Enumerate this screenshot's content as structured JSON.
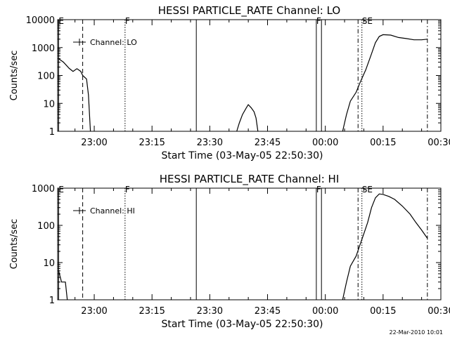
{
  "footer": {
    "timestamp": "22-Mar-2010 10:01"
  },
  "colors": {
    "line": "#000000",
    "background": "#ffffff"
  },
  "chart_data": [
    {
      "type": "line",
      "title": "HESSI PARTICLE_RATE Channel: LO",
      "xlabel": "Start Time (03-May-05 22:50:30)",
      "ylabel": "Counts/sec",
      "y_scale": "log",
      "ylim": [
        1,
        10000
      ],
      "xlim": [
        "22:50:30",
        "00:30:00"
      ],
      "grid": false,
      "legend": {
        "placement": "top-left",
        "entries": [
          "Channel: LO"
        ]
      },
      "x_ticks": [
        "23:00",
        "23:15",
        "23:30",
        "23:45",
        "00:00",
        "00:15",
        "00:30"
      ],
      "y_ticks": [
        "1",
        "10",
        "100",
        "1000",
        "10000"
      ],
      "markers": [
        {
          "label": "E",
          "time": "22:50:45",
          "style": "solid"
        },
        {
          "label": "",
          "time": "22:57:00",
          "style": "dashed"
        },
        {
          "label": "F",
          "time": "23:08:00",
          "style": "dotted"
        },
        {
          "label": "",
          "time": "23:26:30",
          "style": "solid"
        },
        {
          "label": "F",
          "time": "23:57:40",
          "style": "solid"
        },
        {
          "label": "",
          "time": "23:59:00",
          "style": "solid"
        },
        {
          "label": "",
          "time": "00:08:30",
          "style": "dashdot"
        },
        {
          "label": "SE",
          "time": "00:09:30",
          "style": "dotted"
        },
        {
          "label": "",
          "time": "00:26:30",
          "style": "dashdot"
        }
      ],
      "series": [
        {
          "name": "Channel: LO",
          "segments": [
            [
              [
                "22:50:45",
                400
              ],
              [
                "22:52:00",
                300
              ],
              [
                "22:53:30",
                180
              ],
              [
                "22:54:30",
                140
              ],
              [
                "22:55:30",
                175
              ],
              [
                "22:56:30",
                140
              ],
              [
                "22:57:00",
                100
              ],
              [
                "22:58:00",
                75
              ],
              [
                "22:58:30",
                20
              ],
              [
                "22:59:00",
                1
              ]
            ],
            [
              [
                "23:37:00",
                1
              ],
              [
                "23:37:40",
                2
              ],
              [
                "23:38:30",
                4
              ],
              [
                "23:39:30",
                7
              ],
              [
                "23:40:00",
                9
              ],
              [
                "23:40:45",
                7
              ],
              [
                "23:41:30",
                5
              ],
              [
                "23:42:00",
                3
              ],
              [
                "23:42:30",
                1
              ]
            ],
            [
              [
                "00:04:30",
                1
              ],
              [
                "00:05:30",
                4
              ],
              [
                "00:06:30",
                12
              ],
              [
                "00:08:00",
                25
              ],
              [
                "00:09:00",
                55
              ],
              [
                "00:10:30",
                160
              ],
              [
                "00:12:00",
                600
              ],
              [
                "00:13:00",
                1500
              ],
              [
                "00:14:00",
                2500
              ],
              [
                "00:15:00",
                2900
              ],
              [
                "00:17:00",
                2800
              ],
              [
                "00:19:00",
                2300
              ],
              [
                "00:21:00",
                2100
              ],
              [
                "00:23:00",
                1900
              ],
              [
                "00:25:00",
                1900
              ],
              [
                "00:26:30",
                2000
              ]
            ]
          ]
        }
      ]
    },
    {
      "type": "line",
      "title": "HESSI PARTICLE_RATE Channel: HI",
      "xlabel": "Start Time (03-May-05 22:50:30)",
      "ylabel": "Counts/sec",
      "y_scale": "log",
      "ylim": [
        1,
        1000
      ],
      "xlim": [
        "22:50:30",
        "00:30:00"
      ],
      "grid": false,
      "legend": {
        "placement": "top-left",
        "entries": [
          "Channel: HI"
        ]
      },
      "x_ticks": [
        "23:00",
        "23:15",
        "23:30",
        "23:45",
        "00:00",
        "00:15",
        "00:30"
      ],
      "y_ticks": [
        "1",
        "10",
        "100",
        "1000"
      ],
      "markers": [
        {
          "label": "E",
          "time": "22:50:45",
          "style": "solid"
        },
        {
          "label": "",
          "time": "22:57:00",
          "style": "dashed"
        },
        {
          "label": "F",
          "time": "23:08:00",
          "style": "dotted"
        },
        {
          "label": "",
          "time": "23:26:30",
          "style": "solid"
        },
        {
          "label": "F",
          "time": "23:57:40",
          "style": "solid"
        },
        {
          "label": "",
          "time": "23:59:00",
          "style": "solid"
        },
        {
          "label": "",
          "time": "00:08:30",
          "style": "dashdot"
        },
        {
          "label": "SE",
          "time": "00:09:30",
          "style": "dotted"
        },
        {
          "label": "",
          "time": "00:26:30",
          "style": "dashdot"
        }
      ],
      "series": [
        {
          "name": "Channel: HI",
          "segments": [
            [
              [
                "22:50:45",
                6
              ],
              [
                "22:51:30",
                3
              ],
              [
                "22:52:30",
                3
              ],
              [
                "22:53:00",
                1
              ]
            ],
            [
              [
                "00:04:30",
                1
              ],
              [
                "00:05:30",
                3
              ],
              [
                "00:06:30",
                8
              ],
              [
                "00:08:00",
                15
              ],
              [
                "00:09:00",
                30
              ],
              [
                "00:10:00",
                60
              ],
              [
                "00:11:00",
                120
              ],
              [
                "00:12:00",
                300
              ],
              [
                "00:13:00",
                550
              ],
              [
                "00:14:00",
                700
              ],
              [
                "00:15:00",
                680
              ],
              [
                "00:16:30",
                600
              ],
              [
                "00:18:00",
                500
              ],
              [
                "00:20:00",
                330
              ],
              [
                "00:22:00",
                200
              ],
              [
                "00:23:30",
                120
              ],
              [
                "00:25:00",
                75
              ],
              [
                "00:26:30",
                45
              ]
            ]
          ]
        }
      ]
    }
  ]
}
